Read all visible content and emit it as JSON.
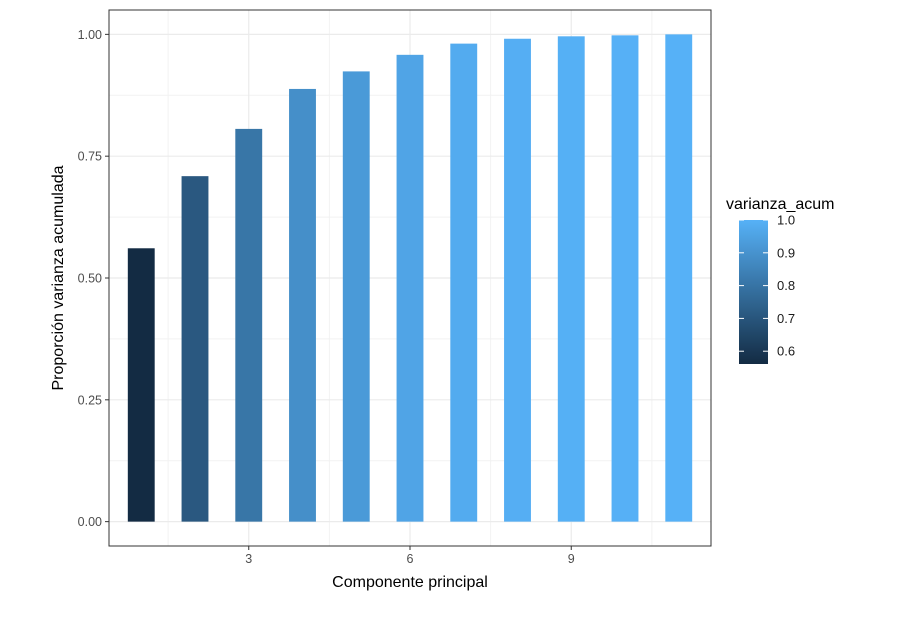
{
  "chart_data": {
    "type": "bar",
    "x": [
      1,
      2,
      3,
      4,
      5,
      6,
      7,
      8,
      9,
      10,
      11
    ],
    "values": [
      0.561,
      0.709,
      0.806,
      0.888,
      0.924,
      0.958,
      0.981,
      0.991,
      0.996,
      0.998,
      1.0
    ],
    "xlabel": "Componente principal",
    "ylabel": "Proporción varianza acumulada",
    "xticks": [
      3,
      6,
      9
    ],
    "xtick_labels": [
      "3",
      "6",
      "9"
    ],
    "yticks": [
      0.0,
      0.25,
      0.5,
      0.75,
      1.0
    ],
    "ytick_labels": [
      "0.00",
      "0.25",
      "0.50",
      "0.75",
      "1.00"
    ],
    "xlim": [
      0.4,
      11.6
    ],
    "ylim": [
      -0.05,
      1.05
    ],
    "grid": true,
    "fill_variable": "varianza_acum",
    "legend": {
      "title": "varianza_acum",
      "placement": "right",
      "breaks": [
        0.6,
        0.7,
        0.8,
        0.9,
        1.0
      ],
      "labels": [
        "0.6",
        "0.7",
        "0.8",
        "0.9",
        "1.0"
      ],
      "range": [
        0.561,
        1.0
      ]
    },
    "colors": {
      "low": "#132B43",
      "high": "#56B1F7"
    }
  }
}
